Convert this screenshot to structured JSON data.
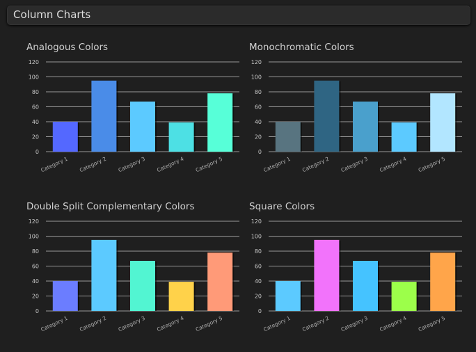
{
  "header": {
    "title": "Column Charts"
  },
  "chart_data": [
    {
      "type": "bar",
      "title": "Analogous Colors",
      "categories": [
        "Category 1",
        "Category 2",
        "Category 3",
        "Category 4",
        "Category 5"
      ],
      "values": [
        40,
        95,
        67,
        39,
        78
      ],
      "colors": [
        "#5468ff",
        "#4a8ce8",
        "#5ccaff",
        "#4de0e4",
        "#57ffd8"
      ],
      "ylim": [
        0,
        120
      ],
      "yticks": [
        0,
        20,
        40,
        60,
        80,
        100,
        120
      ]
    },
    {
      "type": "bar",
      "title": "Monochromatic Colors",
      "categories": [
        "Category 1",
        "Category 2",
        "Category 3",
        "Category 4",
        "Category 5"
      ],
      "values": [
        40,
        95,
        67,
        39,
        78
      ],
      "colors": [
        "#587480",
        "#2f6583",
        "#4aa0cc",
        "#5ccaff",
        "#b2e6ff"
      ],
      "ylim": [
        0,
        120
      ],
      "yticks": [
        0,
        20,
        40,
        60,
        80,
        100,
        120
      ]
    },
    {
      "type": "bar",
      "title": "Double Split Complementary Colors",
      "categories": [
        "Category 1",
        "Category 2",
        "Category 3",
        "Category 4",
        "Category 5"
      ],
      "values": [
        40,
        95,
        67,
        39,
        78
      ],
      "colors": [
        "#6b7dff",
        "#5ccaff",
        "#52f5d2",
        "#ffd24a",
        "#ff9a78"
      ],
      "ylim": [
        0,
        120
      ],
      "yticks": [
        0,
        20,
        40,
        60,
        80,
        100,
        120
      ]
    },
    {
      "type": "bar",
      "title": "Square Colors",
      "categories": [
        "Category 1",
        "Category 2",
        "Category 3",
        "Category 4",
        "Category 5"
      ],
      "values": [
        40,
        95,
        67,
        39,
        78
      ],
      "colors": [
        "#5ccaff",
        "#f273fb",
        "#45c3ff",
        "#9cff4a",
        "#ffa54a"
      ],
      "ylim": [
        0,
        120
      ],
      "yticks": [
        0,
        20,
        40,
        60,
        80,
        100,
        120
      ]
    }
  ]
}
